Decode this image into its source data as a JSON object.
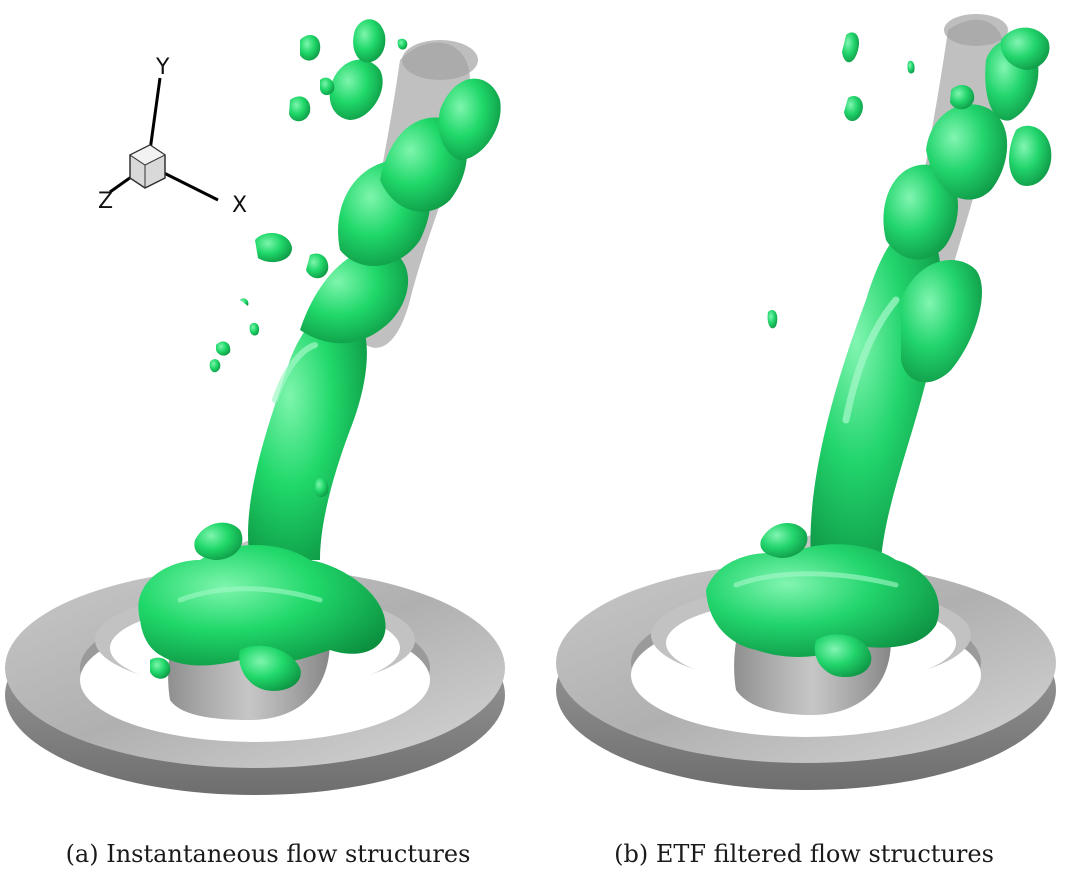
{
  "triad": {
    "y_label": "Y",
    "x_label": "X",
    "z_label": "Z"
  },
  "captions": {
    "a": "(a) Instantaneous flow structures",
    "b": "(b) ETF filtered flow structures"
  },
  "colors": {
    "vortex_green": "#1fd868",
    "vortex_green_dark": "#0e9c45",
    "vortex_green_light": "#6ef0a0",
    "ring_gray": "#b4b4b4",
    "ring_gray_dark": "#7c7c7c",
    "core_gray": "#8a8a8a"
  }
}
